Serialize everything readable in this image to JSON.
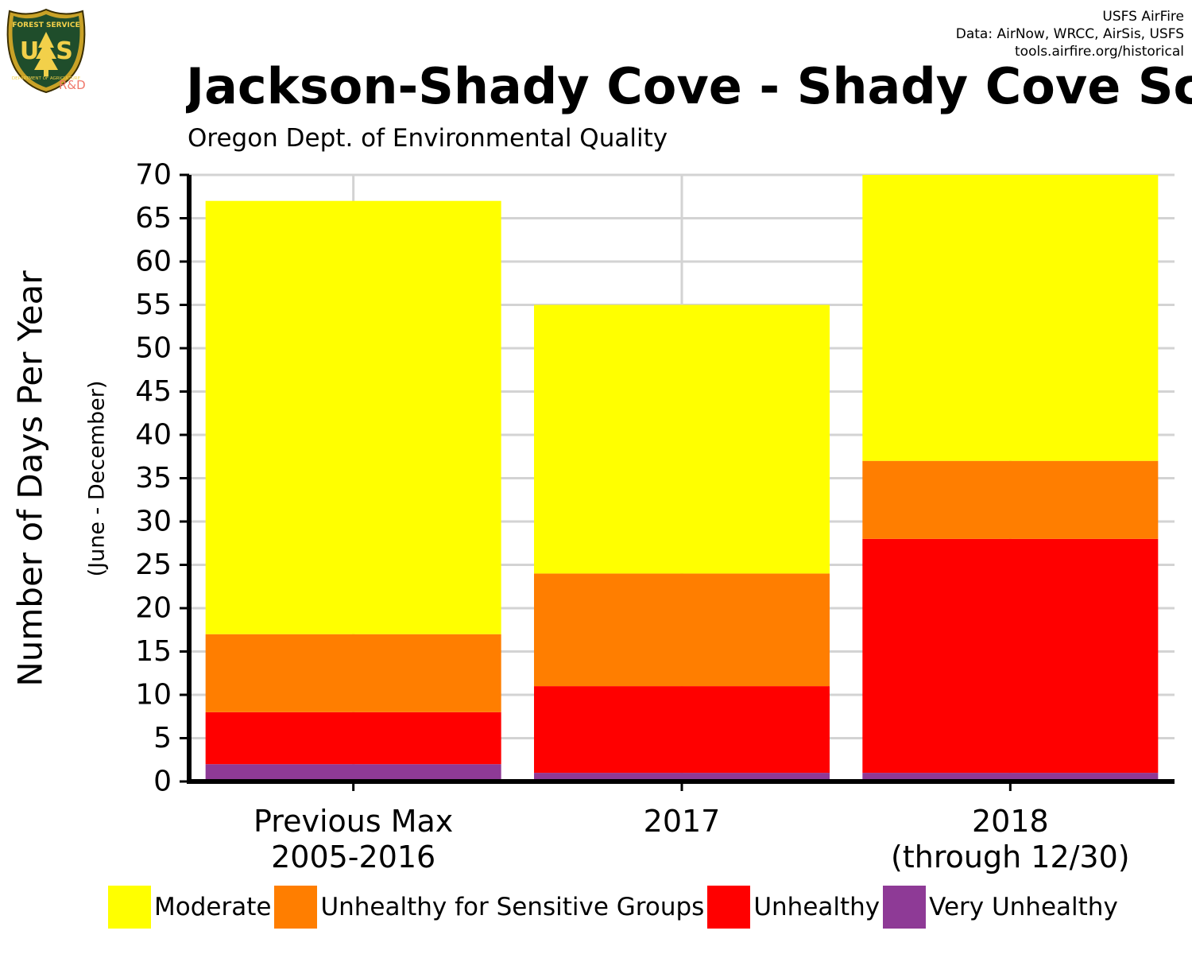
{
  "header": {
    "credits": [
      "USFS AirFire",
      "Data: AirNow, WRCC, AirSis, USFS",
      "tools.airfire.org/historical"
    ],
    "title": "Jackson-Shady Cove - Shady Cove Scho",
    "subtitle": "Oregon Dept. of Environmental Quality"
  },
  "logo": {
    "top_text": "FOREST SERVICE",
    "letters": "U S",
    "bottom_text": "DEPARTMENT OF AGRICULTURE",
    "tag": "R&D"
  },
  "chart_data": {
    "type": "bar",
    "stacked": true,
    "categories": [
      [
        "Previous Max",
        "2005-2016"
      ],
      [
        "2017"
      ],
      [
        "2018",
        "(through 12/30)"
      ]
    ],
    "series": [
      {
        "name": "Very Unhealthy",
        "color": "#8e3a96",
        "values": [
          2,
          1,
          1
        ]
      },
      {
        "name": "Unhealthy",
        "color": "#ff0000",
        "values": [
          6,
          10,
          27
        ]
      },
      {
        "name": "Unhealthy for Sensitive Groups",
        "color": "#ff7e00",
        "values": [
          9,
          13,
          9
        ]
      },
      {
        "name": "Moderate",
        "color": "#ffff00",
        "values": [
          50,
          31,
          33
        ]
      }
    ],
    "ylabel": "Number of Days Per Year",
    "ylabel_sub": "(June - December)",
    "ylim": [
      0,
      70
    ],
    "yticks": [
      0,
      5,
      10,
      15,
      20,
      25,
      30,
      35,
      40,
      45,
      50,
      55,
      60,
      65,
      70
    ],
    "grid": true,
    "legend_position": "bottom",
    "legend_order": [
      "Moderate",
      "Unhealthy for Sensitive Groups",
      "Unhealthy",
      "Very Unhealthy"
    ]
  }
}
